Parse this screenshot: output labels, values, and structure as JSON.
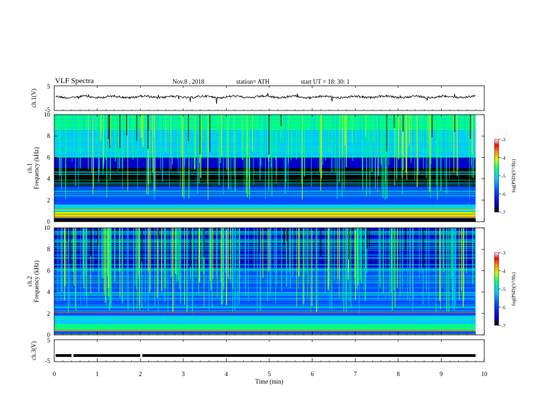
{
  "header": {
    "title": "VLF  Spectra",
    "date": "Nov.8  , 2018",
    "station": "station= ATH",
    "start": "start  UT  =    18: 30: 1"
  },
  "chart_data": [
    {
      "type": "line",
      "panel": "ch1-waveform",
      "ylabel": "ch.1(V)",
      "ylim": [
        -5,
        5
      ],
      "yticks": [
        "5",
        "-5"
      ],
      "x_range_min": [
        0,
        9.8
      ],
      "approx_level": 0,
      "description_series": "noisy waveform near 0 V"
    },
    {
      "type": "heatmap",
      "panel": "ch1-spectrogram",
      "ylabel": "ch.1\nFrequency  (kHz)",
      "ylim": [
        0,
        10
      ],
      "yticks": [
        "0",
        "2",
        "4",
        "6",
        "8",
        "10"
      ],
      "colorbar": {
        "label": "log(PSD)(V²/Hz)",
        "ticks": [
          "-3",
          "-4",
          "-5",
          "-6",
          "-7"
        ],
        "range": [
          -7,
          -3
        ]
      }
    },
    {
      "type": "heatmap",
      "panel": "ch2-spectrogram",
      "ylabel": "ch.2\nFrequency  (kHz)",
      "ylim": [
        0,
        10
      ],
      "yticks": [
        "0",
        "2",
        "4",
        "6",
        "8",
        "10"
      ],
      "colorbar": {
        "label": "log(PSD)(V²/Hz)",
        "ticks": [
          "-3",
          "-4",
          "-5",
          "-6",
          "-7"
        ],
        "range": [
          -7,
          -3
        ]
      }
    },
    {
      "type": "line",
      "panel": "ch3-waveform",
      "ylabel": "ch.3(V)",
      "ylim": [
        -5,
        5
      ],
      "yticks": [
        "5",
        "-5"
      ],
      "approx_level": -2.2
    }
  ],
  "xaxis": {
    "label": "Time  (min)",
    "ticks": [
      "0",
      "1",
      "2",
      "3",
      "4",
      "5",
      "6",
      "7",
      "8",
      "9",
      "10"
    ],
    "range": [
      0,
      10
    ]
  },
  "colors": {
    "background": "#00007a",
    "colormap": [
      "#000000",
      "#0000c8",
      "#0050ff",
      "#00c8ff",
      "#00ff80",
      "#c8ff00",
      "#ff8000",
      "#ff0000",
      "#ffffff"
    ]
  }
}
